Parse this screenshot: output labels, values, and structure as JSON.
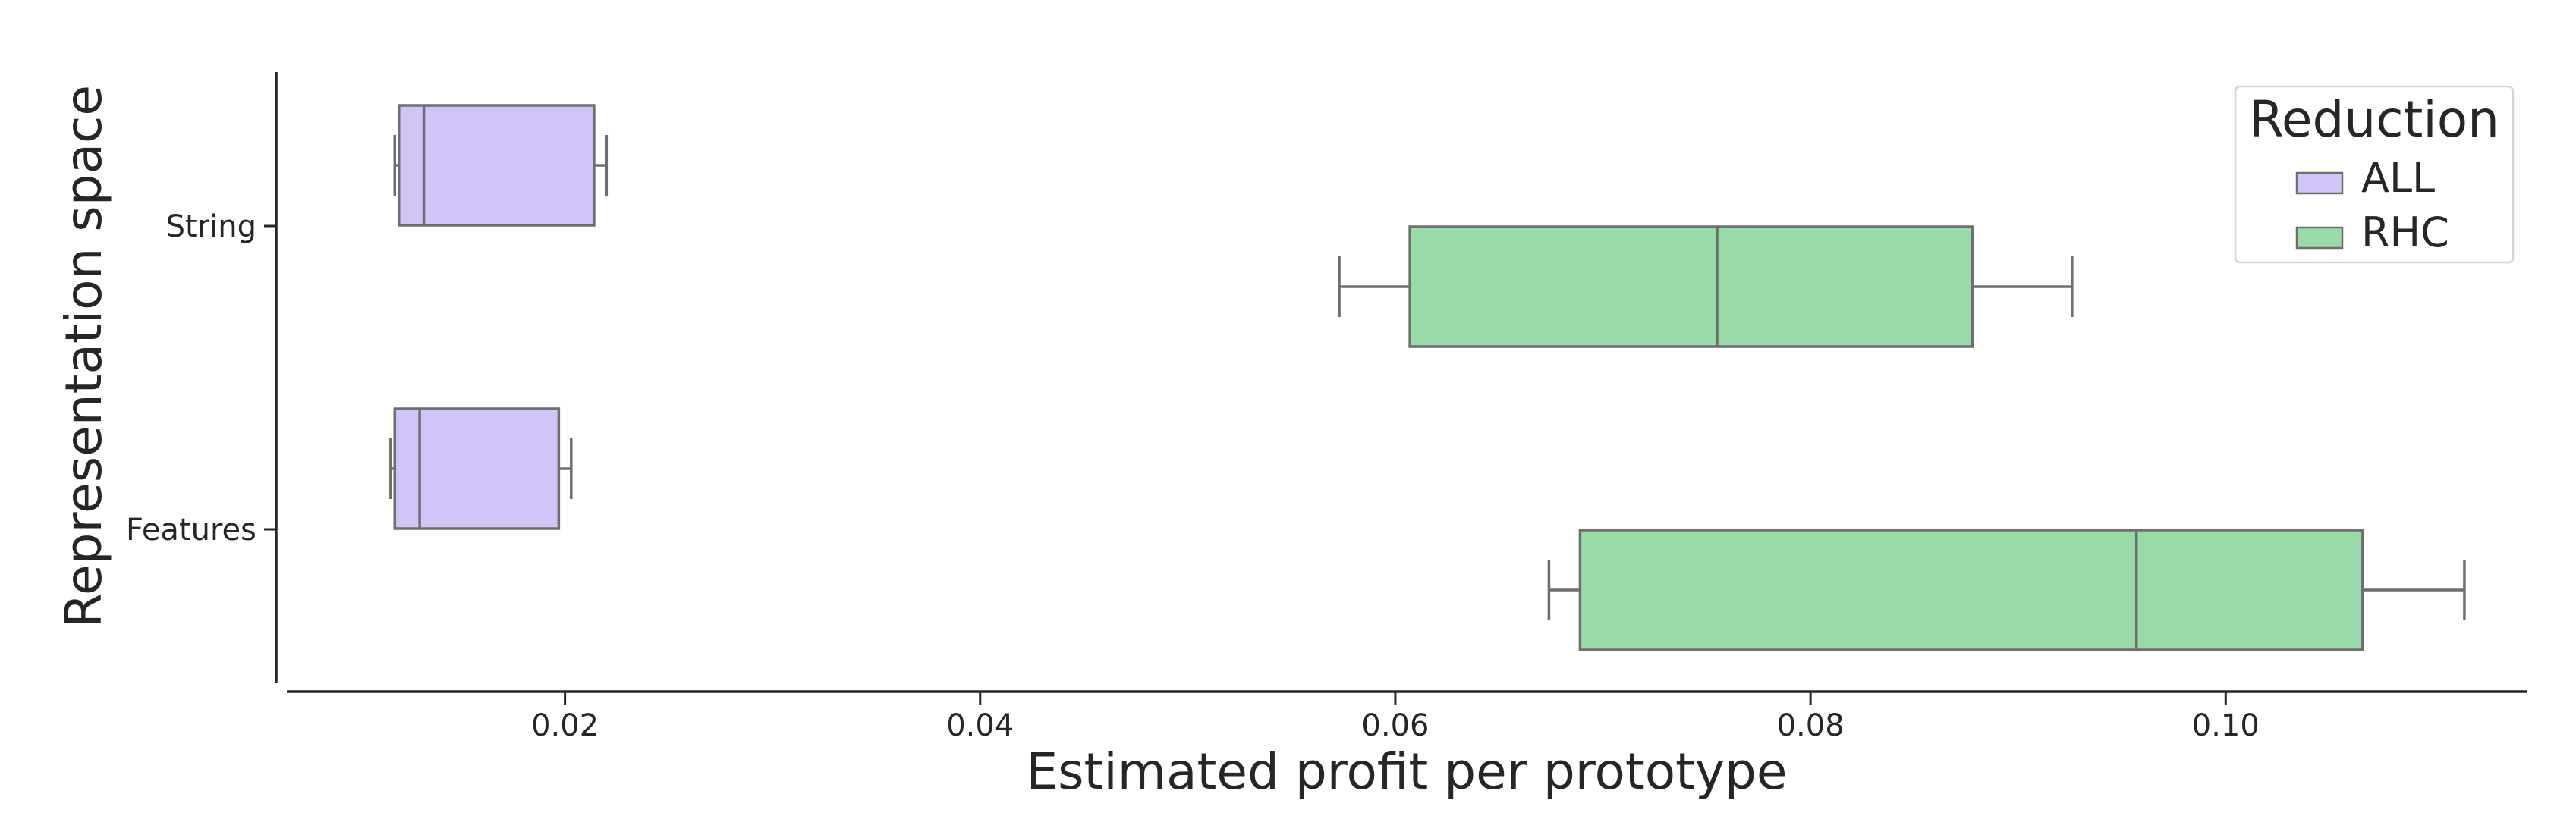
{
  "chart_data": {
    "type": "box",
    "orientation": "horizontal",
    "xlabel": "Estimated profit per prototype",
    "ylabel": "Representation space",
    "xlim": [
      0.0066,
      0.1145
    ],
    "x_ticks": [
      0.02,
      0.04,
      0.06,
      0.08,
      0.1
    ],
    "x_tick_labels": [
      "0.02",
      "0.04",
      "0.06",
      "0.08",
      "0.10"
    ],
    "categories": [
      "String",
      "Features"
    ],
    "legend": {
      "title": "Reduction",
      "position": "top-right"
    },
    "series": [
      {
        "name": "ALL",
        "color": "#d1c4f7",
        "boxes": [
          {
            "category": "String",
            "whisker_low": 0.0118,
            "q1": 0.012,
            "median": 0.0132,
            "q3": 0.0214,
            "whisker_high": 0.022
          },
          {
            "category": "Features",
            "whisker_low": 0.0116,
            "q1": 0.0118,
            "median": 0.013,
            "q3": 0.0197,
            "whisker_high": 0.0203
          }
        ]
      },
      {
        "name": "RHC",
        "color": "#98dba9",
        "boxes": [
          {
            "category": "String",
            "whisker_low": 0.0573,
            "q1": 0.0607,
            "median": 0.0755,
            "q3": 0.0878,
            "whisker_high": 0.0926
          },
          {
            "category": "Features",
            "whisker_low": 0.0674,
            "q1": 0.0689,
            "median": 0.0957,
            "q3": 0.1066,
            "whisker_high": 0.1115
          }
        ]
      }
    ],
    "colors": {
      "edge": "#6e6e6e",
      "axis": "#262626",
      "text": "#262626"
    },
    "grid": false
  }
}
